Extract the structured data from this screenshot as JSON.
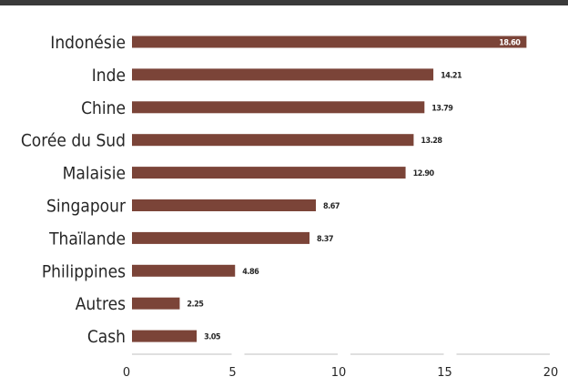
{
  "chart_data": {
    "type": "bar",
    "orientation": "horizontal",
    "title": "",
    "xlabel": "",
    "ylabel": "",
    "categories": [
      "Indonésie",
      "Inde",
      "Chine",
      "Corée du Sud",
      "Malaisie",
      "Singapour",
      "Thaïlande",
      "Philippines",
      "Autres",
      "Cash"
    ],
    "values": [
      18.6,
      14.21,
      13.79,
      13.28,
      12.9,
      8.67,
      8.37,
      4.86,
      2.25,
      3.05
    ],
    "value_labels": [
      "18.60",
      "14.21",
      "13.79",
      "13.28",
      "12.90",
      "8.67",
      "8.37",
      "4.86",
      "2.25",
      "3.05"
    ],
    "xlim": [
      0,
      20
    ],
    "xticks": [
      "0",
      "5",
      "10",
      "15",
      "20"
    ],
    "grid": false,
    "legend": "none",
    "colors": {
      "bar": "#7b4438",
      "top_rule": "#3a3a3a",
      "axis_line": "#bfbfbf",
      "text": "#262626"
    }
  }
}
